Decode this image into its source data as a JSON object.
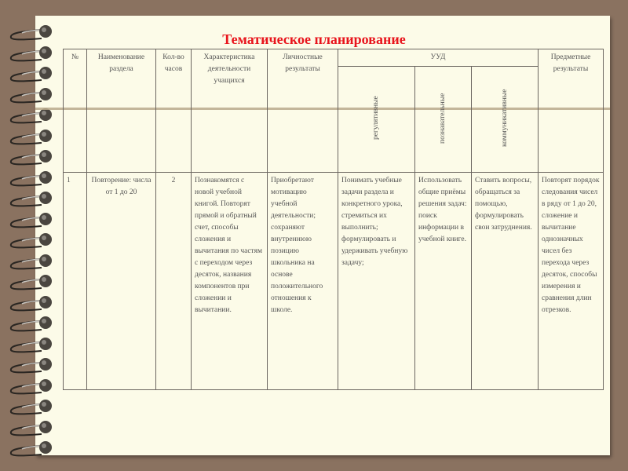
{
  "title": "Тематическое планирование",
  "colors": {
    "background": "#8a7260",
    "page": "#fcfbe8",
    "title": "#e8141c"
  },
  "table": {
    "headers": {
      "num": "№",
      "section": "Наименование раздела",
      "hours": "Кол-во часов",
      "activity": "Характеристика деятельности учащихся",
      "personal": "Личностные результаты",
      "uud": "УУД",
      "uud_sub": [
        "регулятивные",
        "познавательные",
        "коммуникативные"
      ],
      "subject": "Предметные результаты"
    },
    "rows": [
      {
        "num": "1",
        "section": "Повторение: числа от 1 до 20",
        "hours": "2",
        "activity": "Познакомятся с новой учебной книгой. Повторят прямой и обратный счет, способы сложения и вычитания по частям с переходом через десяток, названия компонентов при сложении и вычитании.",
        "personal": "Приобретают мотивацию учебной деятельности; сохраняют внутреннюю позицию школьника на основе положительного отношения к школе.",
        "regulative": "Понимать учебные задачи раздела и конкретного урока, стремиться их выполнить; формулировать и удерживать учебную задачу;",
        "cognitive": "Использовать общие приёмы решения задач: поиск информации в учебной книге.",
        "communicative": "Ставить вопросы, обращаться за помощью, формулировать свои затруднения.",
        "subject": "Повторят порядок следования чисел в ряду от 1 до 20, сложение и вычитание однозначных чисел без перехода через десяток, способы измерения и сравнения длин отрезков."
      }
    ]
  }
}
